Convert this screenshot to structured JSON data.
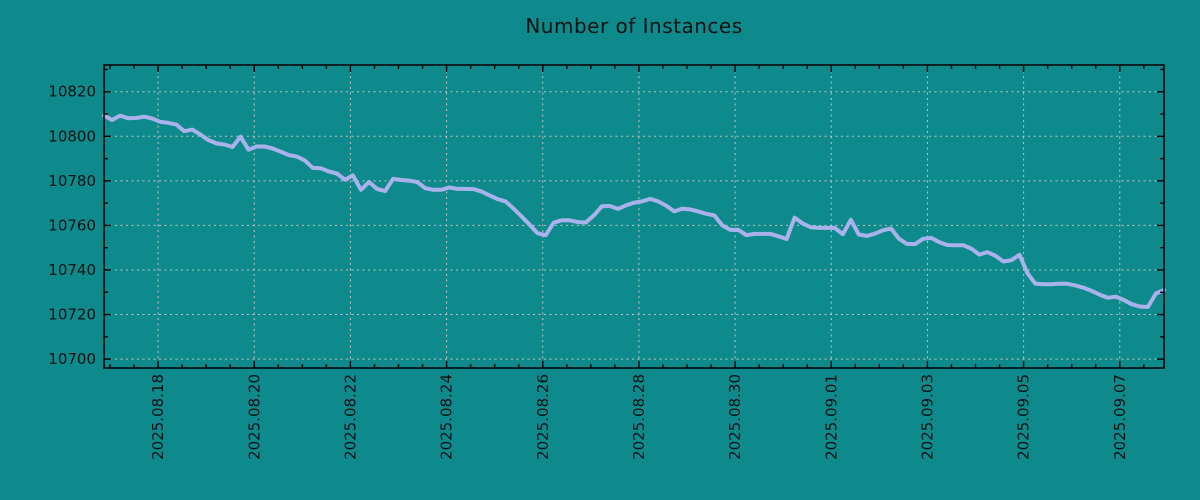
{
  "chart_data": {
    "type": "line",
    "title": "Number of Instances",
    "x_axis": {
      "tick_labels": [
        "2025.08.18",
        "2025.08.20",
        "2025.08.22",
        "2025.08.24",
        "2025.08.26",
        "2025.08.28",
        "2025.08.30",
        "2025.09.01",
        "2025.09.03",
        "2025.09.05",
        "2025.09.07"
      ],
      "tick_days": [
        0,
        2,
        4,
        6,
        8,
        10,
        12,
        14,
        16,
        18,
        20
      ],
      "minor_step_days": 0.5,
      "lim_days": [
        -1.125,
        20.92
      ]
    },
    "y_axis": {
      "ticks": [
        10700,
        10720,
        10740,
        10760,
        10780,
        10800,
        10820
      ],
      "minor_step": 10,
      "lim": [
        10696,
        10832
      ]
    },
    "grid": true,
    "legend": null,
    "colors": {
      "background": "#0f8a8c",
      "grid": "#c4c4c4",
      "axis": "#000000",
      "text": "#061212"
    },
    "series": [
      {
        "name": "instances",
        "color": "#aab2ec",
        "values": [
          10809.4,
          10807.3,
          10809.3,
          10808.1,
          10808.2,
          10808.8,
          10808,
          10806.5,
          10806,
          10805.3,
          10802.3,
          10803,
          10800.8,
          10798.3,
          10796.8,
          10796.3,
          10795.2,
          10799.8,
          10794,
          10795.4,
          10795.4,
          10794.5,
          10793.1,
          10791.6,
          10790.9,
          10789.2,
          10785.8,
          10785.7,
          10784.2,
          10783.3,
          10780.5,
          10782.5,
          10776,
          10779.5,
          10776.4,
          10775.4,
          10780.9,
          10780.4,
          10780.1,
          10779.5,
          10776.7,
          10776,
          10776,
          10777,
          10776.4,
          10776.4,
          10776.3,
          10775.2,
          10773.5,
          10771.8,
          10770.8,
          10767.6,
          10764,
          10760.3,
          10756.5,
          10755.6,
          10761.2,
          10762.3,
          10762.3,
          10761.5,
          10761.3,
          10764.5,
          10768.6,
          10768.7,
          10767.4,
          10769,
          10770.2,
          10770.8,
          10771.9,
          10770.8,
          10768.9,
          10766.3,
          10767.5,
          10767.2,
          10766.3,
          10765.2,
          10764.5,
          10760,
          10758,
          10758,
          10755.6,
          10756.2,
          10756.2,
          10756.2,
          10755.1,
          10753.9,
          10763.5,
          10760.9,
          10759.2,
          10758.9,
          10758.9,
          10758.9,
          10756,
          10762.5,
          10755.9,
          10755.3,
          10756.3,
          10757.8,
          10758.6,
          10754,
          10751.7,
          10751.6,
          10754,
          10754.4,
          10752.5,
          10751.2,
          10751.1,
          10751.1,
          10749.6,
          10746.9,
          10748,
          10746.4,
          10743.8,
          10744.4,
          10746.8,
          10738.5,
          10733.8,
          10733.6,
          10733.6,
          10733.9,
          10733.8,
          10733,
          10732,
          10730.6,
          10728.9,
          10727.5,
          10728,
          10726.5,
          10724.6,
          10723.6,
          10723.4,
          10729.5,
          10731
        ]
      }
    ]
  }
}
